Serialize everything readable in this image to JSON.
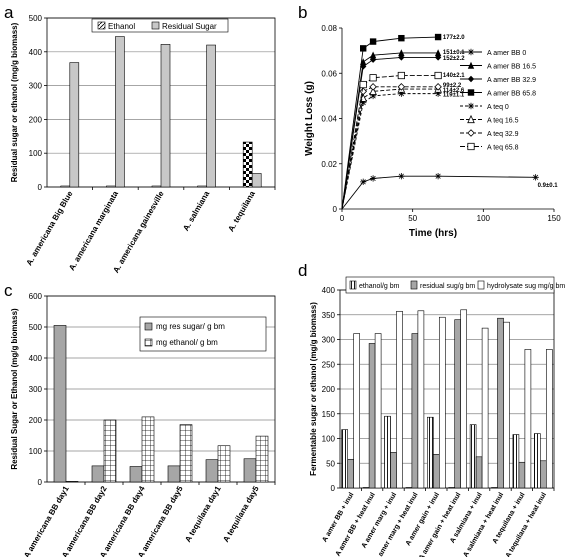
{
  "chart_data": [
    {
      "panel": "a",
      "type": "bar",
      "ylabel": "Residual sugar or ethanol (mg/g biomass)",
      "ylim": [
        0,
        500
      ],
      "yticks": [
        0,
        100,
        200,
        300,
        400,
        500
      ],
      "grid": true,
      "categories": [
        "A. americana Big Blue",
        "A. americana marginata",
        "A. americana gainesville",
        "A. salmiana",
        "A. tequilana"
      ],
      "series": [
        {
          "name": "Ethanol",
          "values": [
            3,
            3,
            3,
            3,
            133
          ]
        },
        {
          "name": "Residual Sugar",
          "values": [
            368,
            445,
            422,
            420,
            40
          ]
        }
      ],
      "legend": "top-center"
    },
    {
      "panel": "b",
      "type": "line",
      "xlabel": "Time (hrs)",
      "ylabel": "Weight Loss (g)",
      "xlim": [
        0,
        150
      ],
      "ylim": [
        0,
        0.08
      ],
      "xticks": [
        0,
        50,
        100,
        150
      ],
      "yticks": [
        0,
        0.02,
        0.04,
        0.06,
        0.08
      ],
      "ytick_labels": [
        "0",
        "0.02",
        "0.04",
        "0.06",
        "0.08"
      ],
      "grid": false,
      "legend": "right",
      "series": [
        {
          "name": "A amer BB 0",
          "x": [
            0,
            15,
            22,
            42,
            68,
            137
          ],
          "y": [
            0,
            0.012,
            0.0135,
            0.0145,
            0.0145,
            0.014
          ]
        },
        {
          "name": "A amer BB 16.5",
          "x": [
            0,
            15,
            22,
            42,
            68
          ],
          "y": [
            0,
            0.065,
            0.068,
            0.069,
            0.069
          ]
        },
        {
          "name": "A amer BB 32.9",
          "x": [
            0,
            15,
            22,
            42,
            68
          ],
          "y": [
            0,
            0.063,
            0.066,
            0.067,
            0.067
          ]
        },
        {
          "name": "A amer BB 65.8",
          "x": [
            0,
            15,
            22,
            42,
            68
          ],
          "y": [
            0,
            0.071,
            0.074,
            0.0755,
            0.076
          ]
        },
        {
          "name": "A teq 0",
          "x": [
            0,
            15,
            22,
            42,
            68
          ],
          "y": [
            0,
            0.047,
            0.05,
            0.051,
            0.051
          ]
        },
        {
          "name": "A teq 16.5",
          "x": [
            0,
            15,
            22,
            42,
            68
          ],
          "y": [
            0,
            0.049,
            0.052,
            0.053,
            0.053
          ]
        },
        {
          "name": "A teq 32.9",
          "x": [
            0,
            15,
            22,
            42,
            68
          ],
          "y": [
            0,
            0.052,
            0.054,
            0.054,
            0.054
          ]
        },
        {
          "name": "A teq 65.8",
          "x": [
            0,
            15,
            22,
            42,
            68
          ],
          "y": [
            0,
            0.055,
            0.058,
            0.059,
            0.059
          ]
        }
      ],
      "annotations": [
        {
          "text": "177±2.0",
          "x": 70,
          "y": 0.076
        },
        {
          "text": "151±0.1",
          "x": 70,
          "y": 0.0695
        },
        {
          "text": "152±2.2",
          "x": 70,
          "y": 0.0668
        },
        {
          "text": "140±2.1",
          "x": 70,
          "y": 0.0593
        },
        {
          "text": "99±2.2",
          "x": 70,
          "y": 0.0547
        },
        {
          "text": "114±2.6",
          "x": 70,
          "y": 0.0525
        },
        {
          "text": "119±1.1",
          "x": 70,
          "y": 0.0505
        },
        {
          "text": "0.9±0.1",
          "x": 137,
          "y": 0.0105
        }
      ]
    },
    {
      "panel": "c",
      "type": "bar",
      "ylabel": "Residual Sugar or Ethanol (mg/g biomass)",
      "ylim": [
        0,
        600
      ],
      "yticks": [
        0,
        100,
        200,
        300,
        400,
        500,
        600
      ],
      "grid": true,
      "categories": [
        "A americana BB day1",
        "A americana BB day2",
        "A americana BB day4",
        "A americana BB day5",
        "A tequilana day1",
        "A tequilana day5"
      ],
      "series": [
        {
          "name": "mg res sugar/ g bm",
          "values": [
            505,
            52,
            50,
            52,
            72,
            75
          ]
        },
        {
          "name": "mg ethanol/ g bm",
          "values": [
            2,
            200,
            210,
            185,
            117,
            148
          ]
        }
      ],
      "legend": "top-right"
    },
    {
      "panel": "d",
      "type": "bar",
      "ylabel": "Fermentable sugar or ethanol (mg/g biomass)",
      "ylim": [
        0,
        400
      ],
      "yticks": [
        0,
        50,
        100,
        150,
        200,
        250,
        300,
        350,
        400
      ],
      "grid": true,
      "categories": [
        "A amer BB + inul",
        "A amer BB + heat inul",
        "A amer marg + inul",
        "A amer marg + heat inul",
        "A amer gain + inul",
        "A amer gain + heat inul",
        "A salmiana + inul",
        "A salmiana + heat inul",
        "A tequilana + inul",
        "A tequilana + heat inul"
      ],
      "series": [
        {
          "name": "ethanol/g bm",
          "values": [
            118,
            1,
            145,
            1,
            143,
            1,
            128,
            1,
            108,
            110
          ]
        },
        {
          "name": "residual sug/g bm",
          "values": [
            58,
            292,
            72,
            312,
            68,
            340,
            63,
            343,
            52,
            55
          ]
        },
        {
          "name": "hydrolysate sug mg/g bm",
          "values": [
            312,
            312,
            357,
            358,
            345,
            360,
            323,
            335,
            280,
            280
          ]
        }
      ],
      "legend": "top"
    }
  ]
}
